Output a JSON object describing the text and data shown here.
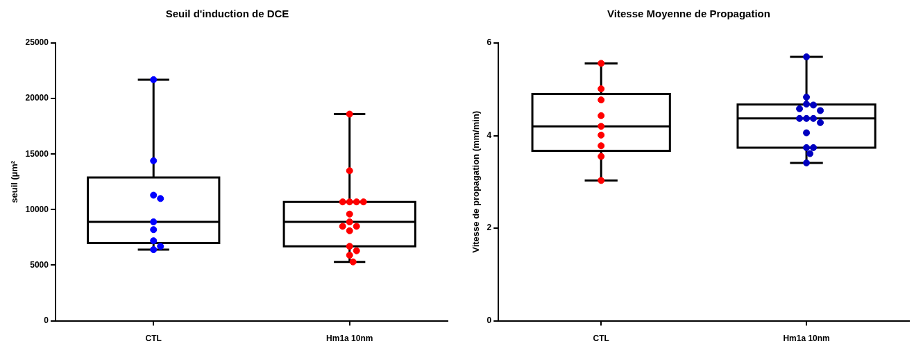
{
  "chart_data": [
    {
      "type": "box",
      "title": "Seuil d'induction de DCE",
      "ylabel": "seuil (µm²",
      "categories": [
        "CTL",
        "Hm1a 10nm"
      ],
      "ylim": [
        0,
        25000
      ],
      "yticks": [
        0,
        5000,
        10000,
        15000,
        20000,
        25000
      ],
      "boxes": [
        {
          "low": 6400,
          "q1": 7000,
          "median": 8900,
          "q3": 12900,
          "high": 21700
        },
        {
          "low": 5300,
          "q1": 6700,
          "median": 8900,
          "q3": 10700,
          "high": 18600
        }
      ],
      "series": [
        {
          "type": "scatter",
          "color": "#0000ff",
          "x": [
            "CTL",
            "CTL",
            "CTL",
            "CTL",
            "CTL",
            "CTL",
            "CTL",
            "CTL",
            "CTL"
          ],
          "values": [
            21700,
            14400,
            11300,
            11000,
            8900,
            8200,
            7200,
            6700,
            6400
          ]
        },
        {
          "type": "scatter",
          "color": "#ff0000",
          "x": [
            "Hm1a 10nm",
            "Hm1a 10nm",
            "Hm1a 10nm",
            "Hm1a 10nm",
            "Hm1a 10nm",
            "Hm1a 10nm",
            "Hm1a 10nm",
            "Hm1a 10nm",
            "Hm1a 10nm",
            "Hm1a 10nm",
            "Hm1a 10nm",
            "Hm1a 10nm",
            "Hm1a 10nm",
            "Hm1a 10nm",
            "Hm1a 10nm"
          ],
          "values": [
            18600,
            13500,
            10700,
            10700,
            10700,
            10700,
            9600,
            8900,
            8500,
            8500,
            8100,
            6700,
            6300,
            5900,
            5300
          ]
        }
      ]
    },
    {
      "type": "box",
      "title": "Vitesse Moyenne de Propagation",
      "ylabel": "Vitesse de propagation (mm/min)",
      "categories": [
        "CTL",
        "Hm1a 10nm"
      ],
      "ylim": [
        0,
        6
      ],
      "yticks": [
        0,
        2,
        4,
        6
      ],
      "boxes": [
        {
          "low": 3.03,
          "q1": 3.67,
          "median": 4.2,
          "q3": 4.9,
          "high": 5.56
        },
        {
          "low": 3.41,
          "q1": 3.74,
          "median": 4.37,
          "q3": 4.67,
          "high": 5.7
        }
      ],
      "series": [
        {
          "type": "scatter",
          "color": "#ff0000",
          "x": [
            "CTL",
            "CTL",
            "CTL",
            "CTL",
            "CTL",
            "CTL",
            "CTL",
            "CTL",
            "CTL"
          ],
          "values": [
            5.56,
            5.01,
            4.77,
            4.43,
            4.2,
            4.01,
            3.78,
            3.55,
            3.03
          ]
        },
        {
          "type": "scatter",
          "color": "#0000c0",
          "x": [
            "Hm1a 10nm",
            "Hm1a 10nm",
            "Hm1a 10nm",
            "Hm1a 10nm",
            "Hm1a 10nm",
            "Hm1a 10nm",
            "Hm1a 10nm",
            "Hm1a 10nm",
            "Hm1a 10nm",
            "Hm1a 10nm",
            "Hm1a 10nm",
            "Hm1a 10nm",
            "Hm1a 10nm",
            "Hm1a 10nm",
            "Hm1a 10nm"
          ],
          "values": [
            5.7,
            4.83,
            4.68,
            4.66,
            4.58,
            4.54,
            4.37,
            4.37,
            4.37,
            4.28,
            4.06,
            3.74,
            3.74,
            3.61,
            3.41
          ]
        }
      ]
    }
  ]
}
